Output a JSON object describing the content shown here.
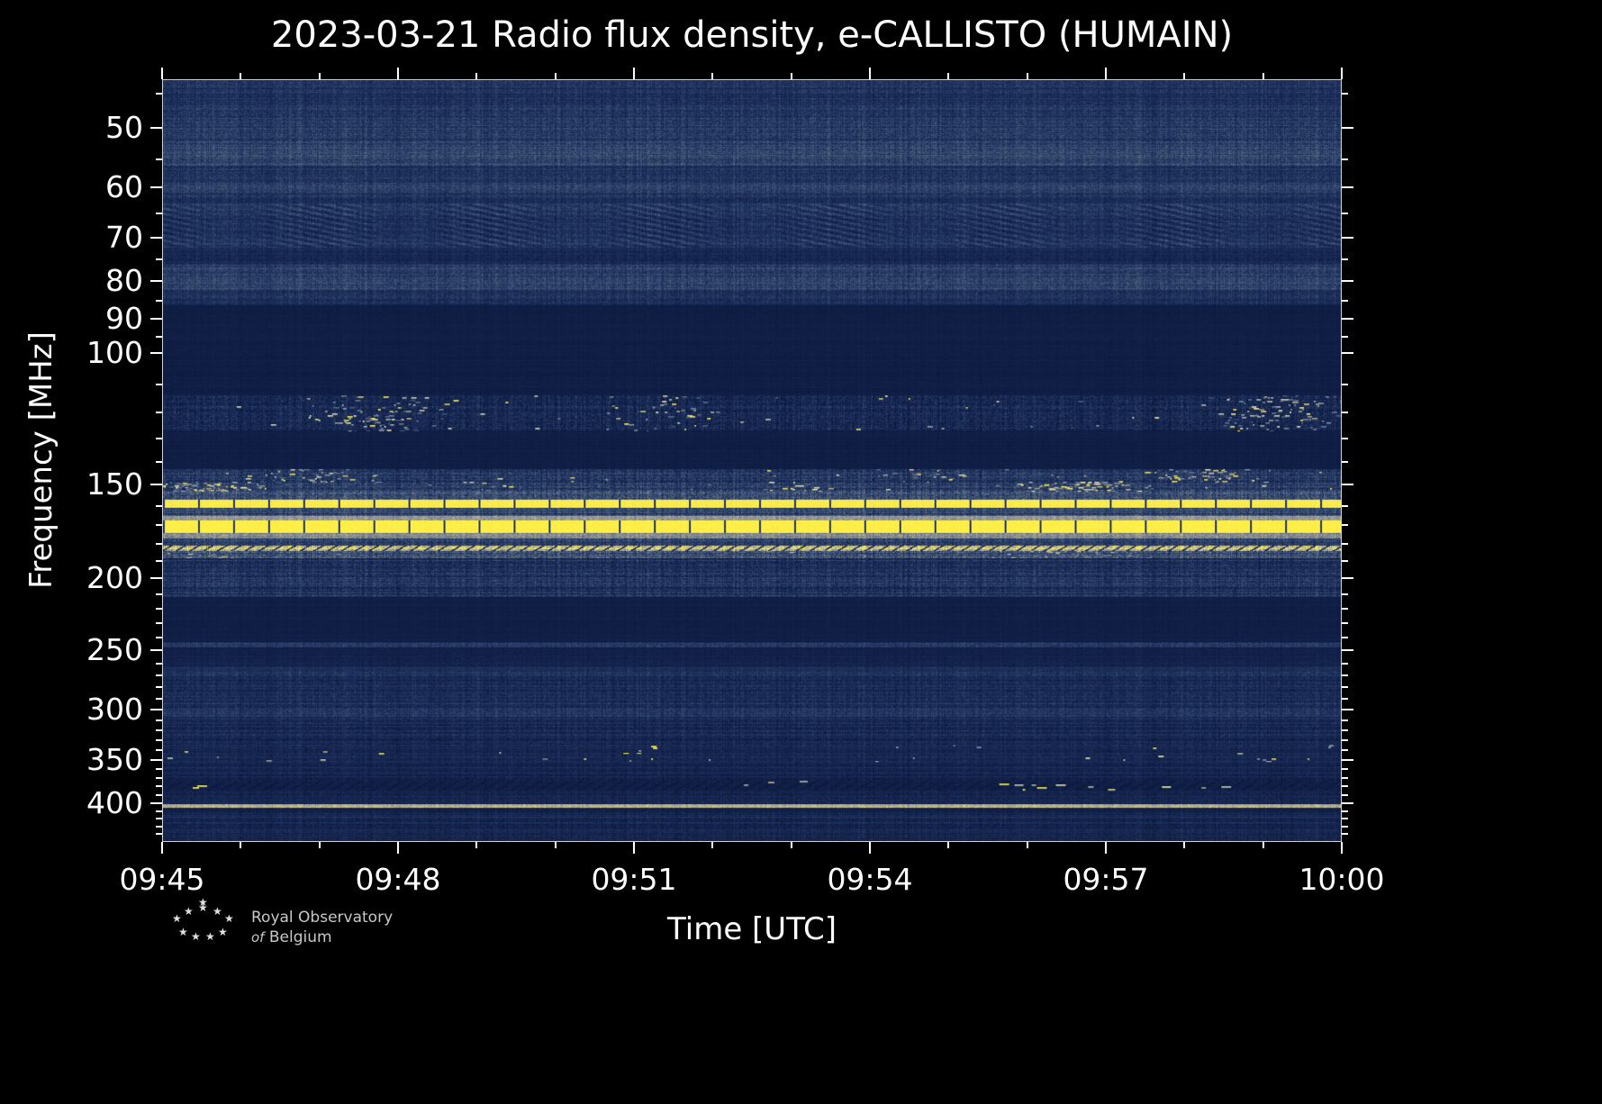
{
  "page": {
    "background": "#000000",
    "foreground": "#ffffff"
  },
  "chart_data": {
    "type": "heatmap",
    "title": "2023-03-21 Radio flux density, e-CALLISTO (HUMAIN)",
    "date": "2023-03-21",
    "station": "e-CALLISTO (HUMAIN)",
    "xlabel": "Time [UTC]",
    "ylabel": "Frequency [MHz]",
    "x_range_minutes": [
      0,
      15
    ],
    "x_ticks": [
      {
        "label": "09:45",
        "minutes": 0
      },
      {
        "label": "09:48",
        "minutes": 3
      },
      {
        "label": "09:51",
        "minutes": 6
      },
      {
        "label": "09:54",
        "minutes": 9
      },
      {
        "label": "09:57",
        "minutes": 12
      },
      {
        "label": "10:00",
        "minutes": 15
      }
    ],
    "x_minor_ticks": [
      1,
      2,
      4,
      5,
      7,
      8,
      10,
      11,
      13,
      14
    ],
    "y_scale": "log",
    "y_range_mhz": [
      43,
      451
    ],
    "y_ticks": [
      {
        "label": "50",
        "mhz": 50
      },
      {
        "label": "60",
        "mhz": 60
      },
      {
        "label": "70",
        "mhz": 70
      },
      {
        "label": "80",
        "mhz": 80
      },
      {
        "label": "90",
        "mhz": 90
      },
      {
        "label": "100",
        "mhz": 100
      },
      {
        "label": "150",
        "mhz": 150
      },
      {
        "label": "200",
        "mhz": 200
      },
      {
        "label": "250",
        "mhz": 250
      },
      {
        "label": "300",
        "mhz": 300
      },
      {
        "label": "350",
        "mhz": 350
      },
      {
        "label": "400",
        "mhz": 400
      }
    ],
    "y_minor_ticks": [
      45,
      55,
      65,
      75,
      85,
      95,
      110,
      120,
      130,
      140,
      160,
      170,
      180,
      190,
      210,
      220,
      230,
      240,
      260,
      270,
      280,
      290,
      310,
      320,
      330,
      340,
      360,
      370,
      380,
      390,
      410,
      420,
      430,
      440
    ],
    "legend": "none",
    "grid": false,
    "colormap": [
      [
        0.0,
        10,
        22,
        58
      ],
      [
        0.25,
        30,
        50,
        95
      ],
      [
        0.45,
        72,
        92,
        122
      ],
      [
        0.62,
        128,
        135,
        148
      ],
      [
        0.78,
        196,
        186,
        136
      ],
      [
        0.9,
        240,
        225,
        90
      ],
      [
        1.0,
        255,
        240,
        70
      ]
    ],
    "bands": [
      {
        "f_lo": 43,
        "f_hi": 47,
        "base": 0.24,
        "noise": 0.12
      },
      {
        "f_lo": 47,
        "f_hi": 52,
        "base": 0.28,
        "noise": 0.13
      },
      {
        "f_lo": 52,
        "f_hi": 56,
        "base": 0.33,
        "noise": 0.13
      },
      {
        "f_lo": 56,
        "f_hi": 59,
        "base": 0.24,
        "noise": 0.12
      },
      {
        "f_lo": 59,
        "f_hi": 61,
        "base": 0.32,
        "noise": 0.12
      },
      {
        "f_lo": 61,
        "f_hi": 63,
        "base": 0.22,
        "noise": 0.12
      },
      {
        "f_lo": 63,
        "f_hi": 72,
        "base": 0.24,
        "noise": 0.12,
        "diag": 0.1,
        "desc": "wavy interference pattern"
      },
      {
        "f_lo": 72,
        "f_hi": 76,
        "base": 0.16,
        "noise": 0.1
      },
      {
        "f_lo": 76,
        "f_hi": 79,
        "base": 0.3,
        "noise": 0.13
      },
      {
        "f_lo": 79,
        "f_hi": 82,
        "base": 0.34,
        "noise": 0.13
      },
      {
        "f_lo": 82,
        "f_hi": 86,
        "base": 0.22,
        "noise": 0.12
      },
      {
        "f_lo": 86,
        "f_hi": 114,
        "base": 0.075,
        "noise": 0.03,
        "row_var": 0.02,
        "desc": "quiet dark band"
      },
      {
        "f_lo": 114,
        "f_hi": 127,
        "base": 0.17,
        "noise": 0.16,
        "row_var": 0.05,
        "speckle": 0.55,
        "sp_min": 0.4,
        "sp_max": 1.0,
        "clump": 1,
        "desc": "intermittent bright RFI speckles"
      },
      {
        "f_lo": 127,
        "f_hi": 143,
        "base": 0.075,
        "noise": 0.03,
        "row_var": 0.02,
        "desc": "quiet dark band"
      },
      {
        "f_lo": 143,
        "f_hi": 149,
        "base": 0.26,
        "noise": 0.16,
        "row_var": 0.07,
        "speckle": 0.35,
        "sp_min": 0.4,
        "sp_max": 0.95,
        "clump": 1
      },
      {
        "f_lo": 149,
        "f_hi": 153,
        "base": 0.3,
        "noise": 0.16,
        "row_var": 0.07,
        "speckle": 0.45,
        "sp_min": 0.4,
        "sp_max": 1.0,
        "clump": 1
      },
      {
        "f_lo": 153,
        "f_hi": 157,
        "base": 0.42,
        "noise": 0.18,
        "row_var": 0.08
      },
      {
        "f_lo": 157,
        "f_hi": 161,
        "base": 0.97,
        "noise": 0.05,
        "gaps": 1,
        "desc": "strong continuous RFI line ~158 MHz"
      },
      {
        "f_lo": 161,
        "f_hi": 165,
        "base": 0.33,
        "noise": 0.14
      },
      {
        "f_lo": 165,
        "f_hi": 167.5,
        "base": 0.7,
        "noise": 0.1
      },
      {
        "f_lo": 167.5,
        "f_hi": 174,
        "base": 1.0,
        "noise": 0.04,
        "gaps": 1,
        "desc": "strongest RFI band 168-174 MHz"
      },
      {
        "f_lo": 174,
        "f_hi": 177,
        "base": 0.62,
        "noise": 0.12
      },
      {
        "f_lo": 177,
        "f_hi": 181,
        "base": 0.33,
        "noise": 0.14
      },
      {
        "f_lo": 181,
        "f_hi": 184,
        "base": 0.82,
        "noise": 0.2,
        "dash": 1,
        "desc": "intermittent RFI line ~182 MHz"
      },
      {
        "f_lo": 184,
        "f_hi": 188,
        "base": 0.4,
        "noise": 0.18,
        "speckle": 0.25,
        "sp_min": 0.3,
        "sp_max": 0.8,
        "clump": 1
      },
      {
        "f_lo": 188,
        "f_hi": 212,
        "base": 0.23,
        "noise": 0.14,
        "row_var": 0.09
      },
      {
        "f_lo": 212,
        "f_hi": 244,
        "base": 0.08,
        "noise": 0.03,
        "row_var": 0.02,
        "desc": "quiet dark band"
      },
      {
        "f_lo": 244,
        "f_hi": 248,
        "base": 0.28,
        "noise": 0.1
      },
      {
        "f_lo": 248,
        "f_hi": 254,
        "base": 0.09,
        "noise": 0.04
      },
      {
        "f_lo": 254,
        "f_hi": 263,
        "base": 0.12,
        "noise": 0.06
      },
      {
        "f_lo": 263,
        "f_hi": 267,
        "base": 0.22,
        "noise": 0.09
      },
      {
        "f_lo": 267,
        "f_hi": 298,
        "base": 0.19,
        "noise": 0.12,
        "row_var": 0.09
      },
      {
        "f_lo": 298,
        "f_hi": 307,
        "base": 0.26,
        "noise": 0.12,
        "row_var": 0.08
      },
      {
        "f_lo": 307,
        "f_hi": 336,
        "base": 0.16,
        "noise": 0.11,
        "row_var": 0.08
      },
      {
        "f_lo": 336,
        "f_hi": 344,
        "base": 0.13,
        "noise": 0.09,
        "speckle": 0.012,
        "sp_min": 0.6,
        "sp_max": 1.0
      },
      {
        "f_lo": 344,
        "f_hi": 353,
        "base": 0.15,
        "noise": 0.1,
        "speckle": 0.015,
        "sp_min": 0.6,
        "sp_max": 1.0
      },
      {
        "f_lo": 353,
        "f_hi": 374,
        "base": 0.13,
        "noise": 0.09,
        "row_var": 0.07
      },
      {
        "f_lo": 374,
        "f_hi": 386,
        "base": 0.085,
        "noise": 0.04,
        "speckle": 0.05,
        "dash": 1,
        "sp_min": 0.7,
        "sp_max": 1.0,
        "clump": 1,
        "desc": "sporadic bright bursts ~380 MHz"
      },
      {
        "f_lo": 386,
        "f_hi": 403,
        "base": 0.13,
        "noise": 0.09
      },
      {
        "f_lo": 403,
        "f_hi": 407,
        "base": 0.72,
        "noise": 0.1,
        "desc": "RFI line ~405 MHz"
      },
      {
        "f_lo": 407,
        "f_hi": 412,
        "base": 0.1,
        "noise": 0.05
      },
      {
        "f_lo": 412,
        "f_hi": 451,
        "base": 0.15,
        "noise": 0.1,
        "row_var": 0.08
      }
    ]
  },
  "footer": {
    "logo_line1": "Royal Observatory",
    "logo_line2_italic": "of",
    "logo_line2_rest": "Belgium",
    "star_icon": "★"
  }
}
